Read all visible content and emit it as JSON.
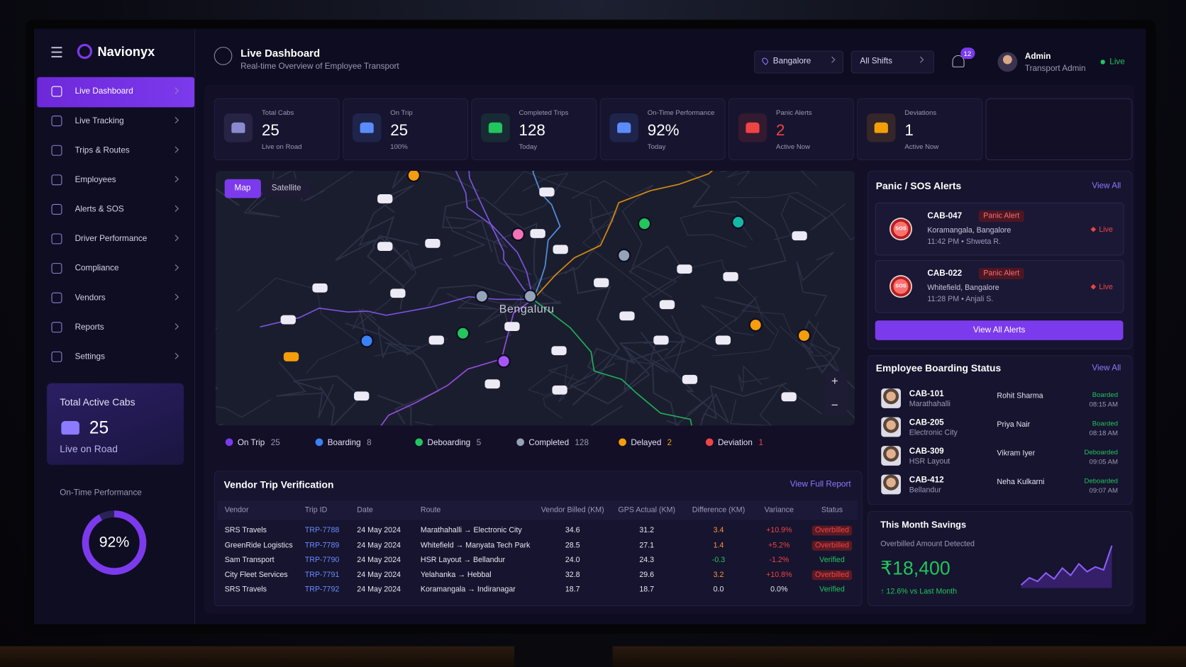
{
  "brand": "Navionyx",
  "nav": [
    "Live Dashboard",
    "Live Tracking",
    "Trips & Routes",
    "Employees",
    "Alerts & SOS",
    "Driver Performance",
    "Compliance",
    "Vendors",
    "Reports",
    "Settings"
  ],
  "sidebar_card": {
    "title": "Total Active Cabs",
    "value": "25",
    "subtitle": "Live on Road"
  },
  "on_time": {
    "title": "On-Time Performance",
    "value": 92,
    "value_label": "92%"
  },
  "header": {
    "title": "Live Dashboard",
    "subtitle": "Real-time Overview of Employee Transport",
    "location": "Bangalore",
    "shift": "All Shifts",
    "notifications": "12",
    "user": "Admin",
    "role": "Transport Admin",
    "status": "Live"
  },
  "kpis": [
    {
      "label": "Total Cabs",
      "value": "25",
      "sub": "Live on Road"
    },
    {
      "label": "On Trip",
      "value": "25",
      "sub": "100%"
    },
    {
      "label": "Completed Trips",
      "value": "128",
      "sub": "Today"
    },
    {
      "label": "On-Time Performance",
      "value": "92%",
      "sub": "Today"
    },
    {
      "label": "Panic Alerts",
      "value": "2",
      "sub": "Active Now"
    },
    {
      "label": "Deviations",
      "value": "1",
      "sub": "Active Now"
    }
  ],
  "map": {
    "tabs": [
      "Map",
      "Satellite"
    ],
    "city": "Bengaluru",
    "zoom": [
      "+",
      "−"
    ],
    "legend": [
      {
        "name": "On Trip",
        "count": "25"
      },
      {
        "name": "Boarding",
        "count": "8"
      },
      {
        "name": "Deboarding",
        "count": "5"
      },
      {
        "name": "Completed",
        "count": "128"
      },
      {
        "name": "Delayed",
        "count": "2"
      },
      {
        "name": "Deviation",
        "count": "1"
      }
    ]
  },
  "vendor_table": {
    "title": "Vendor Trip Verification",
    "link": "View Full Report",
    "columns": [
      "Vendor",
      "Trip ID",
      "Date",
      "Route",
      "Vendor Billed (KM)",
      "GPS Actual (KM)",
      "Difference (KM)",
      "Variance",
      "Status"
    ],
    "rows": [
      [
        "SRS Travels",
        "TRP-7788",
        "24 May 2024",
        "Marathahalli → Electronic City",
        "34.6",
        "31.2",
        "3.4",
        "+10.9%",
        "Overbilled"
      ],
      [
        "GreenRide Logistics",
        "TRP-7789",
        "24 May 2024",
        "Whitefield → Manyata Tech Park",
        "28.5",
        "27.1",
        "1.4",
        "+5.2%",
        "Overbilled"
      ],
      [
        "Sam Transport",
        "TRP-7790",
        "24 May 2024",
        "HSR Layout → Bellandur",
        "24.0",
        "24.3",
        "-0.3",
        "-1.2%",
        "Verified"
      ],
      [
        "City Fleet Services",
        "TRP-7791",
        "24 May 2024",
        "Yelahanka → Hebbal",
        "32.8",
        "29.6",
        "3.2",
        "+10.8%",
        "Overbilled"
      ],
      [
        "SRS Travels",
        "TRP-7792",
        "24 May 2024",
        "Koramangala → Indiranagar",
        "18.7",
        "18.7",
        "0.0",
        "0.0%",
        "Verified"
      ]
    ]
  },
  "alerts": {
    "title": "Panic / SOS Alerts",
    "link": "View All",
    "badge": "SOS",
    "items": [
      {
        "cab": "CAB-047",
        "tag": "Panic Alert",
        "location": "Koramangala, Bangalore",
        "time": "11:42 PM • Shweta R.",
        "status": "Live"
      },
      {
        "cab": "CAB-022",
        "tag": "Panic Alert",
        "location": "Whitefield, Bangalore",
        "time": "11:28 PM • Anjali S.",
        "status": "Live"
      }
    ],
    "button": "View All Alerts"
  },
  "boarding": {
    "title": "Employee Boarding Status",
    "link": "View All",
    "rows": [
      {
        "cab": "CAB-101",
        "area": "Marathahalli",
        "name": "Rohit Sharma",
        "status": "Boarded",
        "time": "08:15 AM"
      },
      {
        "cab": "CAB-205",
        "area": "Electronic City",
        "name": "Priya Nair",
        "status": "Boarded",
        "time": "08:18 AM"
      },
      {
        "cab": "CAB-309",
        "area": "HSR Layout",
        "name": "Vikram Iyer",
        "status": "Deboarded",
        "time": "09:05 AM"
      },
      {
        "cab": "CAB-412",
        "area": "Bellandur",
        "name": "Neha Kulkarni",
        "status": "Deboarded",
        "time": "09:07 AM"
      }
    ]
  },
  "savings": {
    "title": "This Month Savings",
    "subtitle": "Overbilled Amount Detected",
    "amount": "₹18,400",
    "change": "↑ 12.6% vs Last Month",
    "trend": [
      20,
      32,
      26,
      40,
      30,
      48,
      36,
      55,
      42,
      50,
      45,
      85
    ]
  }
}
